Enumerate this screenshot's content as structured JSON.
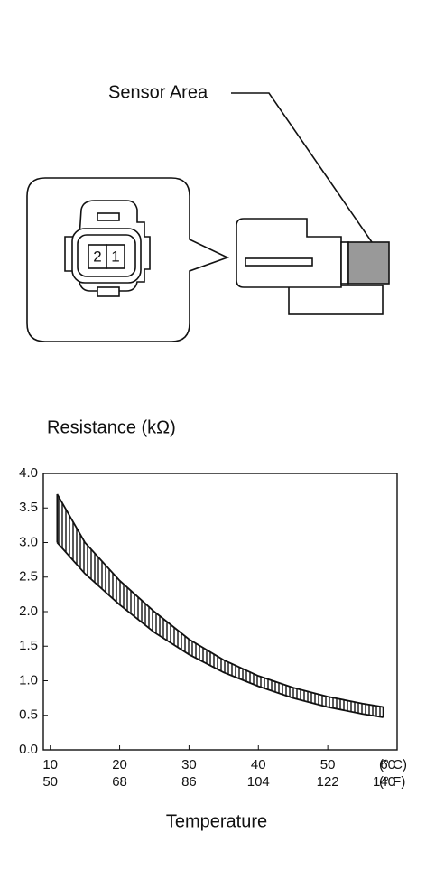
{
  "diagram": {
    "sensor_label": "Sensor Area",
    "pins": [
      "2",
      "1"
    ]
  },
  "chart_data": {
    "type": "band",
    "title": "Resistance (kΩ)",
    "x_label": "Temperature",
    "x_unit": "(° C)",
    "x_unit_f": "(° F)",
    "x": [
      11,
      15,
      20,
      25,
      30,
      35,
      40,
      45,
      50,
      55,
      58
    ],
    "series": [
      {
        "values": [
          3.7,
          3.0,
          2.45,
          2.0,
          1.6,
          1.3,
          1.07,
          0.9,
          0.77,
          0.67,
          0.62
        ]
      },
      {
        "values": [
          3.0,
          2.55,
          2.1,
          1.7,
          1.38,
          1.12,
          0.92,
          0.75,
          0.62,
          0.52,
          0.47
        ]
      }
    ],
    "color": "#111111",
    "xlim": [
      9,
      60
    ],
    "xticks": [
      10,
      20,
      30,
      40,
      50,
      60
    ],
    "xticks_f": [
      {
        "value": 10,
        "label": "50"
      },
      {
        "value": 20,
        "label": "68"
      },
      {
        "value": 30,
        "label": "86"
      },
      {
        "value": 40,
        "label": "104"
      },
      {
        "value": 50,
        "label": "122"
      },
      {
        "value": 60,
        "label": "140"
      }
    ],
    "ylim": [
      0,
      4
    ],
    "yticks": [
      {
        "value": 0,
        "label": "0.0"
      },
      {
        "value": 0.5,
        "label": "0.5"
      },
      {
        "value": 1,
        "label": "1.0"
      },
      {
        "value": 1.5,
        "label": "1.5"
      },
      {
        "value": 2,
        "label": "2.0"
      },
      {
        "value": 2.5,
        "label": "2.5"
      },
      {
        "value": 3,
        "label": "3.0"
      },
      {
        "value": 3.5,
        "label": "3.5"
      },
      {
        "value": 4,
        "label": "4.0"
      }
    ]
  }
}
